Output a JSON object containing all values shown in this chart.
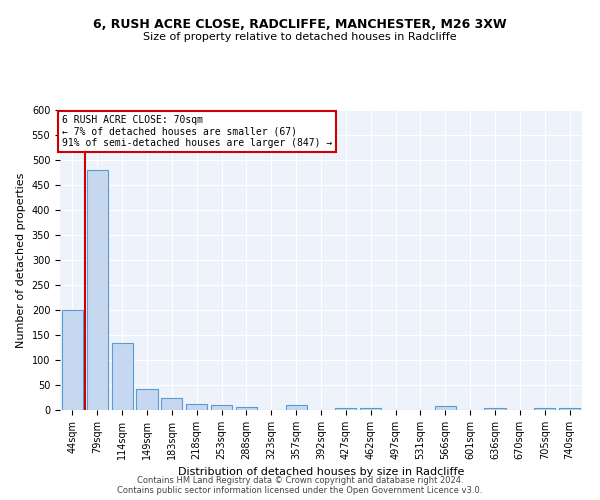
{
  "title1": "6, RUSH ACRE CLOSE, RADCLIFFE, MANCHESTER, M26 3XW",
  "title2": "Size of property relative to detached houses in Radcliffe",
  "xlabel": "Distribution of detached houses by size in Radcliffe",
  "ylabel": "Number of detached properties",
  "categories": [
    "44sqm",
    "79sqm",
    "114sqm",
    "149sqm",
    "183sqm",
    "218sqm",
    "253sqm",
    "288sqm",
    "323sqm",
    "357sqm",
    "392sqm",
    "427sqm",
    "462sqm",
    "497sqm",
    "531sqm",
    "566sqm",
    "601sqm",
    "636sqm",
    "670sqm",
    "705sqm",
    "740sqm"
  ],
  "values": [
    200,
    480,
    135,
    43,
    25,
    13,
    11,
    6,
    0,
    11,
    0,
    5,
    5,
    0,
    0,
    8,
    0,
    5,
    0,
    5,
    5
  ],
  "bar_color": "#c5d8f0",
  "bar_edge_color": "#5b9bd5",
  "background_color": "#eef2fa",
  "grid_color": "#ffffff",
  "vline_color": "#cc0000",
  "annotation_line1": "6 RUSH ACRE CLOSE: 70sqm",
  "annotation_line2": "← 7% of detached houses are smaller (67)",
  "annotation_line3": "91% of semi-detached houses are larger (847) →",
  "annotation_box_color": "#cc0000",
  "footer1": "Contains HM Land Registry data © Crown copyright and database right 2024.",
  "footer2": "Contains public sector information licensed under the Open Government Licence v3.0.",
  "ylim": [
    0,
    600
  ],
  "yticks": [
    0,
    50,
    100,
    150,
    200,
    250,
    300,
    350,
    400,
    450,
    500,
    550,
    600
  ],
  "title1_fontsize": 9,
  "title2_fontsize": 8,
  "ylabel_fontsize": 8,
  "xlabel_fontsize": 8,
  "tick_fontsize": 7
}
